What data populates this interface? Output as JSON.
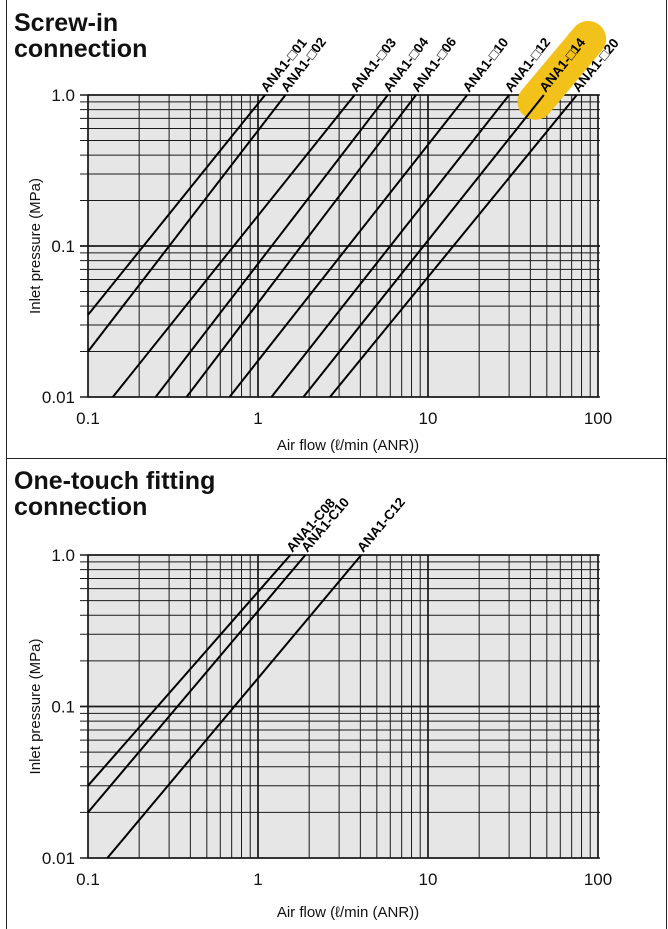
{
  "colors": {
    "plot_bg": "#e6e6e6",
    "grid": "#1a1a1a",
    "line": "#000000",
    "highlight": "#f2c21a"
  },
  "chart_data": [
    {
      "type": "line",
      "title": "Screw-in connection",
      "title_lines": [
        "Screw-in",
        "connection"
      ],
      "xlabel": "Air flow (ℓ/min (ANR))",
      "ylabel": "Inlet pressure (MPa)",
      "x_scale": "log",
      "y_scale": "log",
      "xlim": [
        0.1,
        100
      ],
      "ylim": [
        0.01,
        1.0
      ],
      "xticks": [
        "0.1",
        "1",
        "10",
        "100"
      ],
      "yticks": [
        "0.01",
        "0.1",
        "1.0"
      ],
      "grid": true,
      "highlighted_series": [
        "ANA1-□14",
        "ANA1-□20"
      ],
      "series": [
        {
          "name": "ANA1-□01",
          "points": [
            [
              0.1,
              0.035
            ],
            [
              1.1,
              1.0
            ]
          ]
        },
        {
          "name": "ANA1-□02",
          "points": [
            [
              0.1,
              0.02
            ],
            [
              1.45,
              1.0
            ]
          ]
        },
        {
          "name": "ANA1-□03",
          "points": [
            [
              0.14,
              0.01
            ],
            [
              3.7,
              1.0
            ]
          ]
        },
        {
          "name": "ANA1-□04",
          "points": [
            [
              0.25,
              0.01
            ],
            [
              5.8,
              1.0
            ]
          ]
        },
        {
          "name": "ANA1-□06",
          "points": [
            [
              0.38,
              0.01
            ],
            [
              8.5,
              1.0
            ]
          ]
        },
        {
          "name": "ANA1-□10",
          "points": [
            [
              0.68,
              0.01
            ],
            [
              17,
              1.0
            ]
          ]
        },
        {
          "name": "ANA1-□12",
          "points": [
            [
              1.2,
              0.01
            ],
            [
              30,
              1.0
            ]
          ]
        },
        {
          "name": "ANA1-□14",
          "points": [
            [
              1.85,
              0.01
            ],
            [
              48,
              1.0
            ]
          ]
        },
        {
          "name": "ANA1-□20",
          "points": [
            [
              2.65,
              0.01
            ],
            [
              75,
              1.0
            ]
          ]
        }
      ]
    },
    {
      "type": "line",
      "title": "One-touch fitting connection",
      "title_lines": [
        "One-touch fitting",
        "connection"
      ],
      "xlabel": "Air flow (ℓ/min (ANR))",
      "ylabel": "Inlet pressure (MPa)",
      "x_scale": "log",
      "y_scale": "log",
      "xlim": [
        0.1,
        100
      ],
      "ylim": [
        0.01,
        1.0
      ],
      "xticks": [
        "0.1",
        "1",
        "10",
        "100"
      ],
      "yticks": [
        "0.01",
        "0.1",
        "1.0"
      ],
      "grid": true,
      "highlighted_series": [],
      "series": [
        {
          "name": "ANA1-C08",
          "points": [
            [
              0.1,
              0.03
            ],
            [
              1.55,
              1.0
            ]
          ]
        },
        {
          "name": "ANA1-C10",
          "points": [
            [
              0.1,
              0.02
            ],
            [
              1.9,
              1.0
            ]
          ]
        },
        {
          "name": "ANA1-C12",
          "points": [
            [
              0.13,
              0.01
            ],
            [
              4.05,
              1.0
            ]
          ]
        }
      ]
    }
  ]
}
